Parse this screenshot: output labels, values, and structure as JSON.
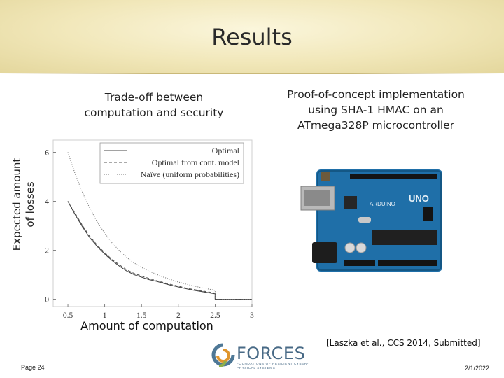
{
  "slide": {
    "title": "Results",
    "left_caption": "Trade-off between computation and security",
    "right_caption_line1": "Proof-of-concept implementation",
    "right_caption_line2": "using SHA-1 HMAC on an",
    "right_caption_line3": "ATmega328P microcontroller",
    "ylabel_line1": "Expected amount",
    "ylabel_line2": "of losses",
    "xlabel": "Amount of computation",
    "citation": "[Laszka et al., CCS 2014, Submitted]",
    "page_number": "Page 24",
    "date": "2/1/2022",
    "logo_word": "FORCES",
    "logo_subtitle": "FOUNDATIONS OF RESILIENT CYBER-PHYSICAL SYSTEMS"
  },
  "board_labels": {
    "brand": "ARDUINO",
    "model": "UNO"
  },
  "chart_data": {
    "type": "line",
    "xlabel": "Amount of computation",
    "ylabel": "Expected amount of losses",
    "xlim": [
      0.3,
      3.0
    ],
    "ylim": [
      -0.3,
      6.5
    ],
    "xticks": [
      0.5,
      1,
      1.5,
      2,
      2.5,
      3
    ],
    "yticks": [
      0,
      2,
      4,
      6
    ],
    "xtick_labels": [
      "0.5",
      "1",
      "1.5",
      "2",
      "2.5",
      "3"
    ],
    "ytick_labels": [
      "0",
      "2",
      "4",
      "6"
    ],
    "legend_position": "top-right",
    "series": [
      {
        "name": "Optimal",
        "style": "solid",
        "x": [
          0.5,
          0.6,
          0.7,
          0.8,
          0.9,
          1.0,
          1.1,
          1.2,
          1.3,
          1.4,
          1.5,
          1.6,
          1.7,
          1.8,
          1.9,
          2.0,
          2.1,
          2.2,
          2.3,
          2.4,
          2.5,
          2.5,
          3.0
        ],
        "y": [
          4.0,
          3.45,
          2.95,
          2.5,
          2.15,
          1.85,
          1.58,
          1.35,
          1.15,
          1.0,
          0.9,
          0.8,
          0.73,
          0.65,
          0.57,
          0.5,
          0.43,
          0.37,
          0.32,
          0.27,
          0.22,
          0.0,
          0.0
        ]
      },
      {
        "name": "Optimal from cont. model",
        "style": "dashed",
        "x": [
          0.5,
          0.6,
          0.7,
          0.8,
          0.9,
          1.0,
          1.1,
          1.2,
          1.3,
          1.4,
          1.5,
          1.6,
          1.7,
          1.8,
          1.9,
          2.0,
          2.1,
          2.2,
          2.3,
          2.4,
          2.5,
          2.5,
          3.0
        ],
        "y": [
          4.0,
          3.5,
          3.0,
          2.56,
          2.2,
          1.9,
          1.62,
          1.4,
          1.2,
          1.05,
          0.95,
          0.85,
          0.76,
          0.68,
          0.6,
          0.53,
          0.46,
          0.4,
          0.35,
          0.3,
          0.25,
          0.0,
          0.0
        ]
      },
      {
        "name": "Naïve (uniform probabilities)",
        "style": "dotted",
        "x": [
          0.5,
          0.6,
          0.7,
          0.8,
          0.9,
          1.0,
          1.1,
          1.2,
          1.3,
          1.4,
          1.5,
          1.6,
          1.7,
          1.8,
          1.9,
          2.0,
          2.1,
          2.2,
          2.3,
          2.4,
          2.5,
          2.5,
          3.0
        ],
        "y": [
          6.0,
          5.1,
          4.35,
          3.7,
          3.15,
          2.7,
          2.3,
          1.98,
          1.7,
          1.48,
          1.3,
          1.15,
          1.02,
          0.9,
          0.8,
          0.7,
          0.62,
          0.55,
          0.48,
          0.42,
          0.36,
          0.0,
          0.0
        ]
      }
    ]
  }
}
